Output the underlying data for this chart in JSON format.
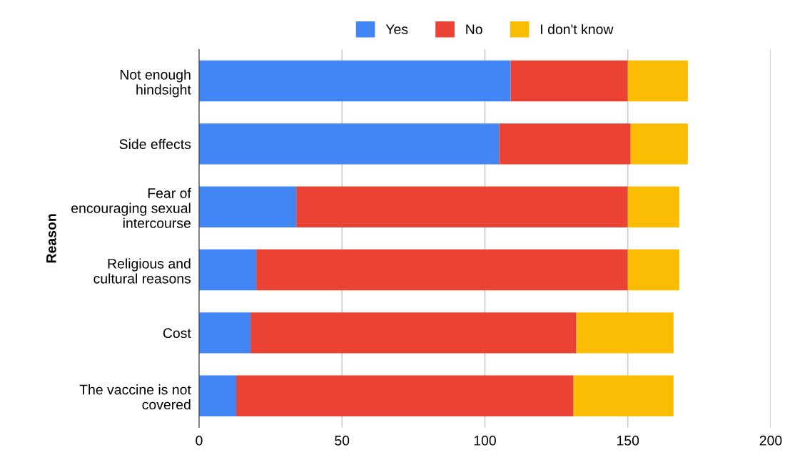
{
  "chart_data": {
    "type": "bar",
    "orientation": "horizontal",
    "stacked": true,
    "ylabel": "Reason",
    "categories": [
      "Not enough\nhindsight",
      "Side effects",
      "Fear of\nencouraging sexual\nintercourse",
      "Religious and\ncultural reasons",
      "Cost",
      "The vaccine is not\ncovered"
    ],
    "series": [
      {
        "name": "Yes",
        "color": "#4285f4",
        "values": [
          109,
          105,
          34,
          20,
          18,
          13
        ]
      },
      {
        "name": "No",
        "color": "#ea4335",
        "values": [
          41,
          46,
          116,
          130,
          114,
          118
        ]
      },
      {
        "name": "I don't know",
        "color": "#fbbc04",
        "values": [
          21,
          20,
          18,
          18,
          34,
          35
        ]
      }
    ],
    "xlim": [
      0,
      200
    ],
    "xticks": [
      0,
      50,
      100,
      150,
      200
    ],
    "grid": "x",
    "legend": "top"
  }
}
